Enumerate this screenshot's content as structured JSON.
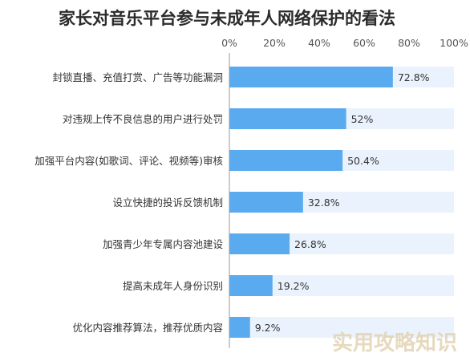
{
  "chart_data": {
    "type": "bar",
    "orientation": "horizontal",
    "title": "家长对音乐平台参与未成年人网络保护的看法",
    "categories": [
      "封锁直播、充值打赏、广告等功能漏洞",
      "对违规上传不良信息的用户进行处罚",
      "加强平台内容(如歌词、评论、视频等)审核",
      "设立快捷的投诉反馈机制",
      "加强青少年专属内容池建设",
      "提高未成年人身份识别",
      "优化内容推荐算法，推荐优质内容"
    ],
    "values": [
      72.8,
      52,
      50.4,
      32.8,
      26.8,
      19.2,
      9.2
    ],
    "value_labels": [
      "72.8%",
      "52%",
      "50.4%",
      "32.8%",
      "26.8%",
      "19.2%",
      "9.2%"
    ],
    "xlim": [
      0,
      100
    ],
    "xticks": [
      0,
      20,
      40,
      60,
      80,
      100
    ],
    "xtick_labels": [
      "0%",
      "20%",
      "40%",
      "60%",
      "80%",
      "100%"
    ],
    "xaxis_position": "top",
    "grid": false,
    "legend": "none",
    "colors": {
      "bar": "#5aaaf0",
      "track": "#eaf3fd",
      "axis": "#999999"
    }
  },
  "watermark": "实用攻略知识"
}
